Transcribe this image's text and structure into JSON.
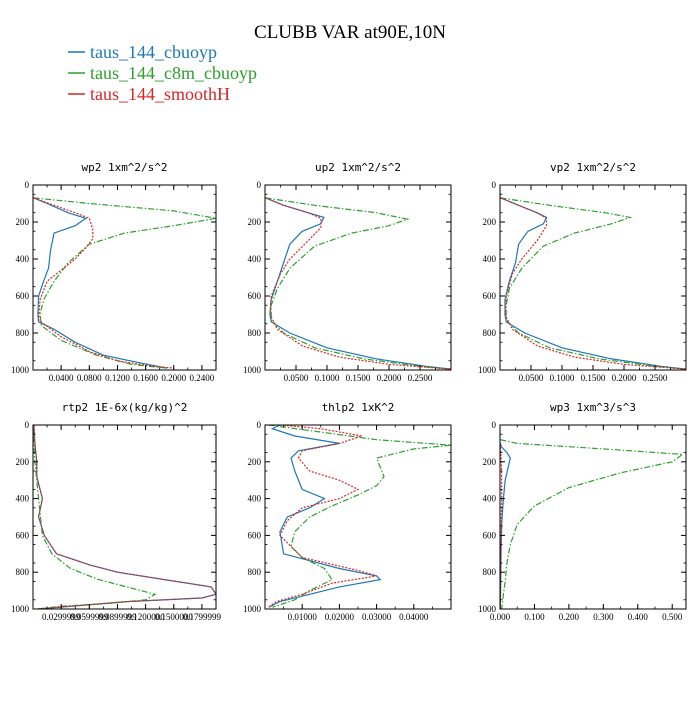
{
  "title": "CLUBB VAR at90E,10N",
  "legend": [
    {
      "label": "taus_144_cbuoyp",
      "color": "#1f77b4",
      "dash": "solid"
    },
    {
      "label": "taus_144_c8m_cbuoyp",
      "color": "#2ca02c",
      "dash": "dashdot"
    },
    {
      "label": "taus_144_smoothH",
      "color": "#d62728",
      "dash": "dotted"
    }
  ],
  "chart_data": [
    {
      "type": "line",
      "title": "wp2  1xm^2/s^2",
      "ylim": [
        1000,
        0
      ],
      "xlim": [
        0,
        0.26
      ],
      "xticks": [
        0.04,
        0.08,
        0.12,
        0.16,
        0.2,
        0.24
      ],
      "xtick_labels": [
        "0.0400",
        "0.0800",
        "0.1200",
        "0.1600",
        "0.2000",
        "0.2400"
      ],
      "yticks": [
        0,
        200,
        400,
        600,
        800,
        1000
      ],
      "series": [
        {
          "name": "taus_144_cbuoyp",
          "x": [
            0.001,
            0.02,
            0.05,
            0.075,
            0.06,
            0.03,
            0.025,
            0.022,
            0.015,
            0.008,
            0.007,
            0.008,
            0.03,
            0.06,
            0.1,
            0.15,
            0.19
          ],
          "y": [
            70,
            100,
            150,
            180,
            220,
            260,
            350,
            450,
            520,
            600,
            700,
            740,
            780,
            850,
            920,
            960,
            990
          ]
        },
        {
          "name": "taus_144_c8m_cbuoyp",
          "x": [
            0.001,
            0.08,
            0.2,
            0.26,
            0.2,
            0.13,
            0.08,
            0.05,
            0.03,
            0.015,
            0.01,
            0.012,
            0.04,
            0.09,
            0.14,
            0.19
          ],
          "y": [
            70,
            100,
            140,
            180,
            220,
            260,
            320,
            420,
            520,
            620,
            700,
            760,
            840,
            920,
            970,
            990
          ]
        },
        {
          "name": "taus_144_smoothH",
          "x": [
            0.001,
            0.03,
            0.06,
            0.08,
            0.085,
            0.085,
            0.075,
            0.06,
            0.04,
            0.02,
            0.01,
            0.008,
            0.04,
            0.08,
            0.12,
            0.17,
            0.2
          ],
          "y": [
            70,
            110,
            150,
            180,
            240,
            290,
            340,
            400,
            460,
            520,
            620,
            730,
            820,
            900,
            950,
            980,
            990
          ]
        }
      ]
    },
    {
      "type": "line",
      "title": "up2  1xm^2/s^2",
      "ylim": [
        1000,
        0
      ],
      "xlim": [
        0,
        0.3
      ],
      "xticks": [
        0.05,
        0.1,
        0.15,
        0.2,
        0.25
      ],
      "xtick_labels": [
        "0.0500",
        "0.1000",
        "0.1500",
        "0.2000",
        "0.2500"
      ],
      "yticks": [
        0,
        200,
        400,
        600,
        800,
        1000
      ],
      "series": [
        {
          "name": "taus_144_cbuoyp",
          "x": [
            0.001,
            0.03,
            0.07,
            0.095,
            0.09,
            0.06,
            0.04,
            0.03,
            0.02,
            0.01,
            0.008,
            0.01,
            0.04,
            0.1,
            0.18,
            0.26,
            0.3
          ],
          "y": [
            70,
            110,
            150,
            175,
            210,
            250,
            320,
            420,
            520,
            620,
            700,
            740,
            800,
            880,
            940,
            980,
            995
          ]
        },
        {
          "name": "taus_144_c8m_cbuoyp",
          "x": [
            0.001,
            0.08,
            0.18,
            0.23,
            0.2,
            0.14,
            0.08,
            0.04,
            0.02,
            0.01,
            0.01,
            0.03,
            0.08,
            0.16,
            0.25,
            0.3
          ],
          "y": [
            70,
            110,
            150,
            185,
            220,
            260,
            330,
            450,
            560,
            650,
            730,
            800,
            880,
            940,
            980,
            995
          ]
        },
        {
          "name": "taus_144_smoothH",
          "x": [
            0.001,
            0.03,
            0.07,
            0.09,
            0.09,
            0.07,
            0.04,
            0.025,
            0.01,
            0.008,
            0.02,
            0.06,
            0.12,
            0.2,
            0.28,
            0.3
          ],
          "y": [
            70,
            110,
            150,
            180,
            230,
            300,
            400,
            480,
            600,
            700,
            780,
            870,
            930,
            970,
            990,
            995
          ]
        }
      ]
    },
    {
      "type": "line",
      "title": "vp2  1xm^2/s^2",
      "ylim": [
        1000,
        0
      ],
      "xlim": [
        0,
        0.3
      ],
      "xticks": [
        0.05,
        0.1,
        0.15,
        0.2,
        0.25
      ],
      "xtick_labels": [
        "0.0500",
        "0.1000",
        "0.1500",
        "0.2000",
        "0.2500"
      ],
      "yticks": [
        0,
        200,
        400,
        600,
        800,
        1000
      ],
      "series": [
        {
          "name": "taus_144_cbuoyp",
          "x": [
            0.001,
            0.03,
            0.06,
            0.075,
            0.07,
            0.045,
            0.03,
            0.025,
            0.015,
            0.008,
            0.008,
            0.01,
            0.04,
            0.1,
            0.18,
            0.26,
            0.3
          ],
          "y": [
            70,
            110,
            150,
            175,
            210,
            250,
            320,
            420,
            520,
            620,
            700,
            740,
            800,
            880,
            940,
            980,
            995
          ]
        },
        {
          "name": "taus_144_c8m_cbuoyp",
          "x": [
            0.001,
            0.08,
            0.17,
            0.21,
            0.18,
            0.12,
            0.07,
            0.035,
            0.015,
            0.01,
            0.01,
            0.03,
            0.08,
            0.16,
            0.25,
            0.3
          ],
          "y": [
            70,
            110,
            150,
            175,
            210,
            260,
            330,
            450,
            560,
            650,
            730,
            800,
            880,
            940,
            980,
            995
          ]
        },
        {
          "name": "taus_144_smoothH",
          "x": [
            0.001,
            0.03,
            0.06,
            0.075,
            0.075,
            0.06,
            0.035,
            0.02,
            0.01,
            0.008,
            0.02,
            0.06,
            0.12,
            0.2,
            0.28,
            0.3
          ],
          "y": [
            70,
            110,
            150,
            180,
            220,
            300,
            400,
            480,
            600,
            700,
            780,
            870,
            930,
            970,
            990,
            995
          ]
        }
      ]
    },
    {
      "type": "line",
      "title": "rtp2  1E-6x(kg/kg)^2",
      "ylim": [
        1000,
        0
      ],
      "xlim": [
        0,
        0.195
      ],
      "xticks": [
        0.03,
        0.06,
        0.09,
        0.12,
        0.15,
        0.18
      ],
      "xtick_labels": [
        "0.0299999",
        "0.0599999",
        "0.0899999",
        "0.1200000",
        "0.1500000",
        "0.1799999"
      ],
      "yticks": [
        0,
        200,
        400,
        600,
        800,
        1000
      ],
      "series": [
        {
          "name": "taus_144_cbuoyp",
          "x": [
            0.001,
            0.002,
            0.004,
            0.004,
            0.007,
            0.01,
            0.006,
            0.012,
            0.025,
            0.06,
            0.09,
            0.14,
            0.19,
            0.195,
            0.18,
            0.1,
            0.005
          ],
          "y": [
            0,
            100,
            200,
            280,
            340,
            400,
            500,
            600,
            700,
            760,
            800,
            840,
            880,
            920,
            940,
            960,
            1000
          ]
        },
        {
          "name": "taus_144_c8m_cbuoyp",
          "x": [
            0.001,
            0.001,
            0.002,
            0.004,
            0.006,
            0.008,
            0.01,
            0.02,
            0.04,
            0.07,
            0.1,
            0.13,
            0.12,
            0.08,
            0.03,
            0.005
          ],
          "y": [
            0,
            100,
            200,
            300,
            400,
            500,
            600,
            700,
            780,
            840,
            880,
            920,
            950,
            970,
            985,
            1000
          ]
        },
        {
          "name": "taus_144_smoothH",
          "x": [
            0.001,
            0.002,
            0.004,
            0.004,
            0.007,
            0.01,
            0.006,
            0.012,
            0.025,
            0.06,
            0.09,
            0.14,
            0.19,
            0.195,
            0.18,
            0.1,
            0.005
          ],
          "y": [
            0,
            100,
            200,
            280,
            340,
            400,
            500,
            600,
            700,
            760,
            800,
            840,
            880,
            920,
            940,
            960,
            1000
          ]
        }
      ]
    },
    {
      "type": "line",
      "title": "thlp2  1xK^2",
      "ylim": [
        1000,
        0
      ],
      "xlim": [
        0,
        0.05
      ],
      "xticks": [
        0.01,
        0.02,
        0.03,
        0.04
      ],
      "xtick_labels": [
        "0.01000",
        "0.02000",
        "0.03000",
        "0.04000"
      ],
      "yticks": [
        0,
        200,
        400,
        600,
        800,
        1000
      ],
      "series": [
        {
          "name": "taus_144_cbuoyp",
          "x": [
            0.004,
            0.002,
            0.008,
            0.02,
            0.009,
            0.007,
            0.008,
            0.01,
            0.016,
            0.012,
            0.006,
            0.004,
            0.005,
            0.02,
            0.03,
            0.031,
            0.02,
            0.012,
            0.004,
            0.001
          ],
          "y": [
            0,
            20,
            60,
            100,
            140,
            180,
            250,
            350,
            400,
            450,
            500,
            580,
            700,
            780,
            820,
            840,
            880,
            920,
            960,
            990
          ]
        },
        {
          "name": "taus_144_c8m_cbuoyp",
          "x": [
            0.001,
            0.03,
            0.05,
            0.04,
            0.03,
            0.032,
            0.03,
            0.025,
            0.018,
            0.012,
            0.008,
            0.007,
            0.01,
            0.016,
            0.018,
            0.012,
            0.008,
            0.002
          ],
          "y": [
            0,
            80,
            110,
            130,
            180,
            280,
            330,
            380,
            440,
            500,
            580,
            660,
            720,
            780,
            840,
            900,
            950,
            990
          ]
        },
        {
          "name": "taus_144_smoothH",
          "x": [
            0.004,
            0.015,
            0.026,
            0.02,
            0.01,
            0.009,
            0.012,
            0.02,
            0.025,
            0.02,
            0.01,
            0.006,
            0.004,
            0.01,
            0.025,
            0.03,
            0.018,
            0.01,
            0.003,
            0.001
          ],
          "y": [
            0,
            20,
            60,
            100,
            140,
            180,
            250,
            300,
            350,
            400,
            450,
            520,
            600,
            720,
            790,
            820,
            860,
            920,
            960,
            990
          ]
        }
      ]
    },
    {
      "type": "line",
      "title": "wp3  1xm^3/s^3",
      "ylim": [
        1000,
        0
      ],
      "xlim": [
        0,
        0.54
      ],
      "xticks": [
        0,
        0.1,
        0.2,
        0.3,
        0.4,
        0.5
      ],
      "xtick_labels": [
        "0.000",
        "0.100",
        "0.200",
        "0.300",
        "0.400",
        "0.500"
      ],
      "yticks": [
        0,
        200,
        400,
        600,
        800,
        1000
      ],
      "series": [
        {
          "name": "taus_144_cbuoyp",
          "x": [
            0.001,
            0.005,
            0.02,
            0.03,
            0.025,
            0.015,
            0.01,
            0.006,
            0.004,
            0.003,
            0.002,
            0.001
          ],
          "y": [
            100,
            120,
            150,
            180,
            220,
            300,
            400,
            500,
            600,
            700,
            850,
            1000
          ]
        },
        {
          "name": "taus_144_c8m_cbuoyp",
          "x": [
            0.001,
            0.05,
            0.3,
            0.53,
            0.5,
            0.35,
            0.2,
            0.1,
            0.05,
            0.03,
            0.02,
            0.015,
            0.01,
            0.005
          ],
          "y": [
            80,
            100,
            130,
            160,
            200,
            260,
            340,
            440,
            540,
            650,
            750,
            850,
            920,
            1000
          ]
        },
        {
          "name": "taus_144_smoothH",
          "x": [
            0.001,
            0.002,
            0.004,
            0.005,
            0.005,
            0.004,
            0.003,
            0.002,
            0.001
          ],
          "y": [
            100,
            150,
            200,
            300,
            400,
            500,
            650,
            800,
            1000
          ]
        }
      ]
    }
  ]
}
